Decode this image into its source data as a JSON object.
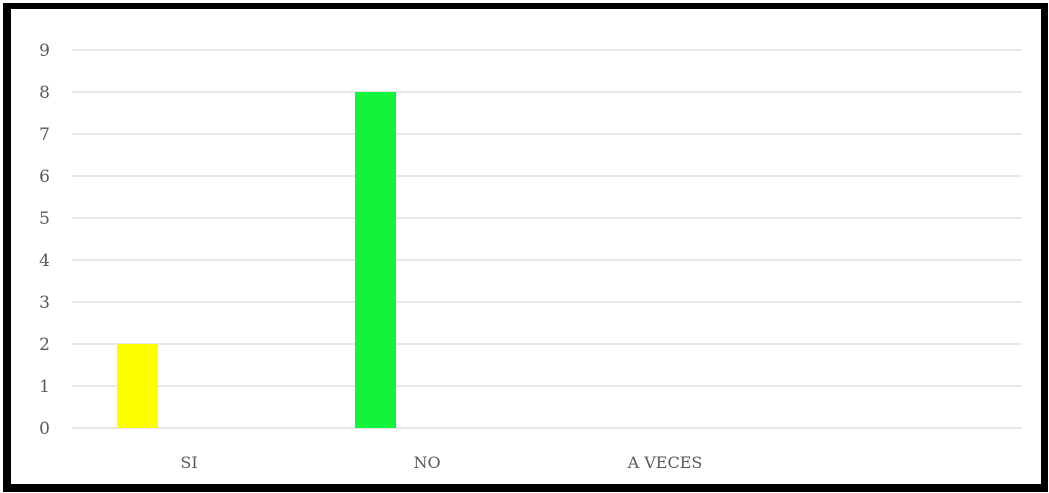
{
  "chart_data": {
    "type": "bar",
    "categories": [
      "SI",
      "NO",
      "A VECES"
    ],
    "values": [
      2,
      8,
      0
    ],
    "colors": [
      "#ffff00",
      "#11f43b",
      "#4472c4"
    ],
    "ylim": [
      0,
      9
    ],
    "yticks": [
      0,
      1,
      2,
      3,
      4,
      5,
      6,
      7,
      8,
      9
    ],
    "grid": true,
    "legend": "none",
    "title": "",
    "xlabel": "",
    "ylabel": ""
  }
}
